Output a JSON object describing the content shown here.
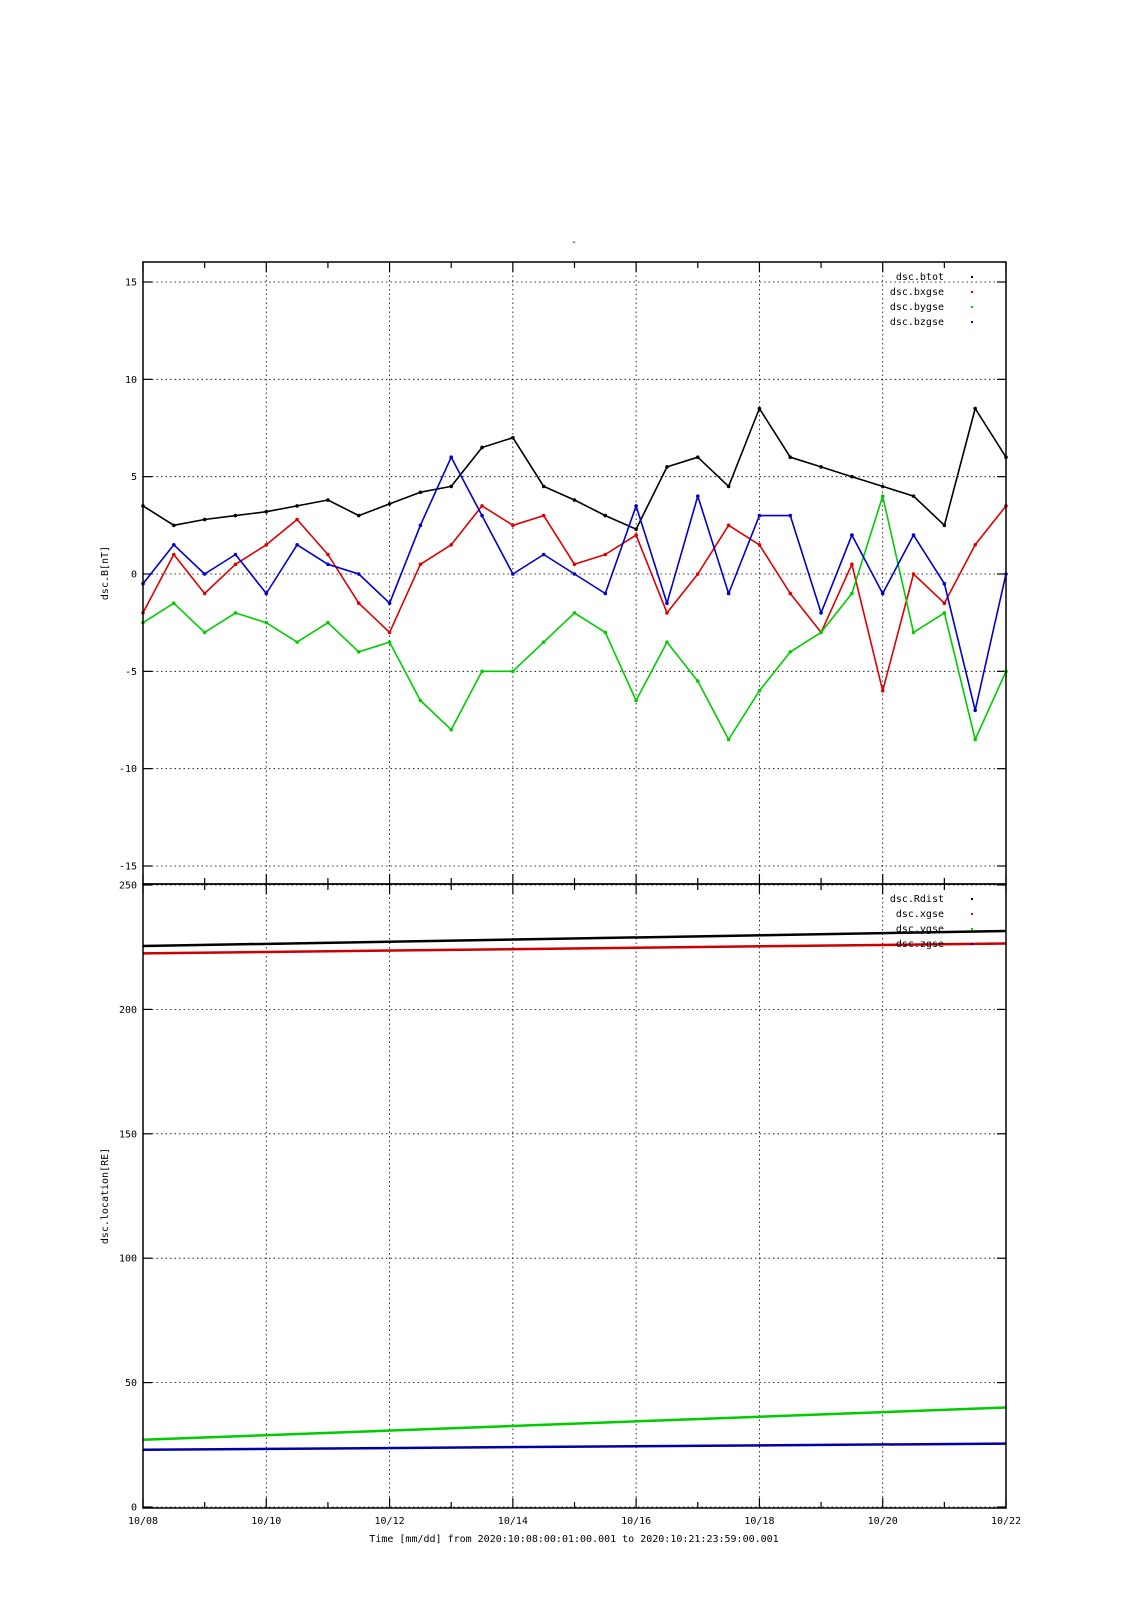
{
  "page_title": "-",
  "x_axis": {
    "label": "Time [mm/dd]  from 2020:10:08:00:01:00.001  to  2020:10:21:23:59:00.001",
    "range_days": [
      0,
      14
    ],
    "tick_labels": [
      "10/08",
      "10/10",
      "10/12",
      "10/14",
      "10/16",
      "10/18",
      "10/20",
      "10/22"
    ],
    "minor_ticks_per_day": true
  },
  "chart_data": [
    {
      "type": "scatter",
      "title": "",
      "ylabel": "dsc.B[nT]",
      "xlabel": "",
      "ylim": [
        -15,
        15
      ],
      "yticks": [
        -15,
        -10,
        -5,
        0,
        5,
        10,
        15
      ],
      "grid": true,
      "legend_position": "top-right",
      "x": [
        "10/08",
        "10/08 12h",
        "10/09",
        "10/09 12h",
        "10/10",
        "10/10 12h",
        "10/11",
        "10/11 12h",
        "10/12",
        "10/12 12h",
        "10/13",
        "10/13 12h",
        "10/14",
        "10/14 12h",
        "10/15",
        "10/15 12h",
        "10/16",
        "10/16 12h",
        "10/17",
        "10/17 12h",
        "10/18",
        "10/18 12h",
        "10/19",
        "10/19 12h",
        "10/20",
        "10/20 12h",
        "10/21",
        "10/21 12h",
        "10/22"
      ],
      "series": [
        {
          "name": "dsc.btot",
          "color": "#000000",
          "values": [
            3.5,
            2.5,
            2.8,
            3.0,
            3.2,
            3.5,
            3.8,
            3.0,
            3.6,
            4.2,
            4.5,
            6.5,
            7.0,
            4.5,
            3.8,
            3.0,
            2.3,
            5.5,
            6.0,
            4.5,
            8.5,
            6.0,
            5.5,
            5.0,
            4.5,
            4.0,
            2.5,
            8.5,
            6.0
          ]
        },
        {
          "name": "dsc.bxgse",
          "color": "#dd0000",
          "values": [
            -2.0,
            1.0,
            -1.0,
            0.5,
            1.5,
            2.8,
            1.0,
            -1.5,
            -3.0,
            0.5,
            1.5,
            3.5,
            2.5,
            3.0,
            0.5,
            1.0,
            2.0,
            -2.0,
            0.0,
            2.5,
            1.5,
            -1.0,
            -3.0,
            0.5,
            -6.0,
            0.0,
            -1.5,
            1.5,
            3.5
          ]
        },
        {
          "name": "dsc.bygse",
          "color": "#00cc00",
          "values": [
            -2.5,
            -1.5,
            -3.0,
            -2.0,
            -2.5,
            -3.5,
            -2.5,
            -4.0,
            -3.5,
            -6.5,
            -8.0,
            -5.0,
            -5.0,
            -3.5,
            -2.0,
            -3.0,
            -6.5,
            -3.5,
            -5.5,
            -8.5,
            -6.0,
            -4.0,
            -3.0,
            -1.0,
            4.0,
            -3.0,
            -2.0,
            -8.5,
            -5.0
          ]
        },
        {
          "name": "dsc.bzgse",
          "color": "#0000cc",
          "values": [
            -0.5,
            1.5,
            0.0,
            1.0,
            -1.0,
            1.5,
            0.5,
            0.0,
            -1.5,
            2.5,
            6.0,
            3.0,
            0.0,
            1.0,
            0.0,
            -1.0,
            3.5,
            -1.5,
            4.0,
            -1.0,
            3.0,
            3.0,
            -2.0,
            2.0,
            -1.0,
            2.0,
            -0.5,
            -7.0,
            0.0
          ]
        }
      ]
    },
    {
      "type": "line",
      "title": "",
      "ylabel": "dsc.location[RE]",
      "xlabel": "",
      "ylim": [
        0,
        250
      ],
      "yticks": [
        0,
        50,
        100,
        150,
        200,
        250
      ],
      "grid": true,
      "legend_position": "top-right",
      "x": [
        "10/08",
        "10/22"
      ],
      "series": [
        {
          "name": "dsc.Rdist",
          "color": "#000000",
          "values": [
            225.5,
            231.5
          ]
        },
        {
          "name": "dsc.xgse",
          "color": "#cc0000",
          "values": [
            222.5,
            226.5
          ]
        },
        {
          "name": "dsc.ygse",
          "color": "#00cc00",
          "values": [
            27.0,
            40.0
          ]
        },
        {
          "name": "dsc.zgse",
          "color": "#0000aa",
          "values": [
            23.0,
            25.5
          ]
        }
      ]
    }
  ]
}
